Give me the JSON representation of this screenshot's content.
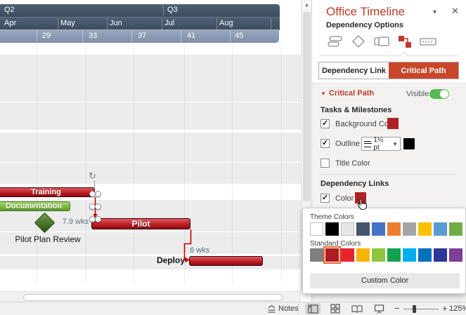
{
  "timeline": {
    "quarters": [
      {
        "label": "Q2"
      },
      {
        "label": "Q3"
      }
    ],
    "months": [
      {
        "label": "Apr"
      },
      {
        "label": "May"
      },
      {
        "label": "Jun"
      },
      {
        "label": "Jul"
      },
      {
        "label": "Aug"
      }
    ],
    "weeks": [
      {
        "label": "29"
      },
      {
        "label": "33"
      },
      {
        "label": "37"
      },
      {
        "label": "41"
      },
      {
        "label": "45"
      }
    ]
  },
  "gantt": {
    "tasks": [
      {
        "label": "Training",
        "color": "#bb1f25"
      },
      {
        "label": "Documentation",
        "color": "#7cba41"
      },
      {
        "label": "Pilot",
        "color": "#bb1f25"
      },
      {
        "label": "Deploy",
        "color": "#bb1f25"
      }
    ],
    "milestone_label": "Pilot Plan Review",
    "milestone_color": "#2b5212",
    "duration_1": "7.9 wks",
    "duration_2": "6 wks",
    "deploy_label": "Deploy",
    "dependency_color": "#C00000"
  },
  "panel": {
    "title": "Office Timeline",
    "title_color": "#BE3B26",
    "section_header": "Dependency Options",
    "dependency_link_button": "Dependency Link",
    "critical_path_button": "Critical Path",
    "critical_path_accent": "#C8472B",
    "critical_path_header": "Critical Path",
    "visible_label": "Visible",
    "toggle_color": "#57B956",
    "tasks_milestones_header": "Tasks & Milestones",
    "background_color_label": "Background Color",
    "background_color_value": "#AE2127",
    "outline_label": "Outline",
    "outline_weight": "1½ pt",
    "outline_color_value": "#000000",
    "title_color_label": "Title Color",
    "dependency_links_header": "Dependency Links",
    "color_label": "Color",
    "color_value": "#AE2127"
  },
  "popup": {
    "theme_colors_label": "Theme Colors",
    "standard_colors_label": "Standard Colors",
    "custom_color_button": "Custom Color",
    "theme_colors": [
      "#FFFFFF",
      "#000000",
      "#E7E6E6",
      "#44546A",
      "#4472C4",
      "#ED7D31",
      "#A5A5A5",
      "#FFC000",
      "#5B9BD5",
      "#70AD47"
    ],
    "standard_colors": [
      "#7F7F7F",
      "#AE1C21",
      "#E8232E",
      "#F7B500",
      "#8DC63F",
      "#12A24B",
      "#00AEEF",
      "#0072BC",
      "#2E3699",
      "#7D3F98"
    ],
    "selected_standard_index": 1,
    "selection_ring_color": "#E8642C"
  },
  "statusbar": {
    "notes_label": "Notes",
    "zoom_level": "125%"
  }
}
